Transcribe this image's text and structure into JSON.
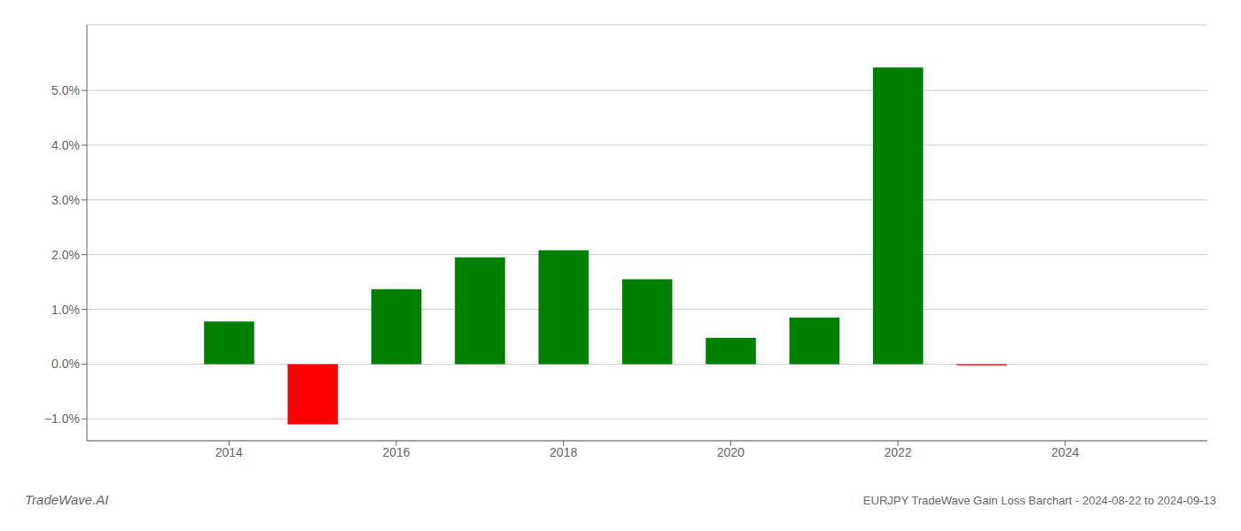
{
  "chart_data": {
    "type": "bar",
    "title": "EURJPY TradeWave Gain Loss Barchart - 2024-08-22 to 2024-09-13",
    "annotations": [
      "TradeWave.AI"
    ],
    "x": [
      2014,
      2015,
      2016,
      2017,
      2018,
      2019,
      2020,
      2021,
      2022,
      2023
    ],
    "values": [
      0.0078,
      -0.011,
      0.0137,
      0.0195,
      0.0208,
      0.0155,
      0.0048,
      0.0085,
      0.0542,
      -0.0002
    ],
    "colors": [
      "#008000",
      "#ff0000",
      "#008000",
      "#008000",
      "#008000",
      "#008000",
      "#008000",
      "#008000",
      "#008000",
      "#ff0000"
    ],
    "xlim": [
      2012.3,
      2025.7
    ],
    "xticks": [
      2014,
      2016,
      2018,
      2020,
      2022,
      2024
    ],
    "ylim": [
      -0.014,
      0.062
    ],
    "yticks": [
      {
        "value": -0.01,
        "label": "−1.0%"
      },
      {
        "value": 0.0,
        "label": "0.0%"
      },
      {
        "value": 0.01,
        "label": "1.0%"
      },
      {
        "value": 0.02,
        "label": "2.0%"
      },
      {
        "value": 0.03,
        "label": "3.0%"
      },
      {
        "value": 0.04,
        "label": "4.0%"
      },
      {
        "value": 0.05,
        "label": "5.0%"
      }
    ],
    "grid": "y"
  }
}
